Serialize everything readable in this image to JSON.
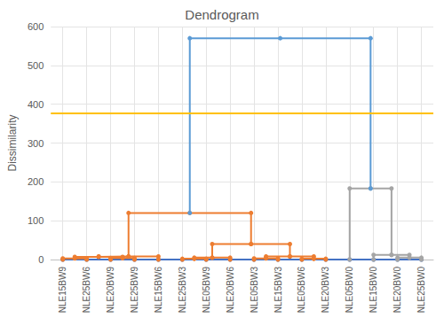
{
  "chart_data": {
    "type": "dendrogram",
    "title": "Dendrogram",
    "y_label": "Dissimilarity",
    "categories": [
      "NLE15BW9",
      "NLE25BW6",
      "NLE20BW9",
      "NLE25BW9",
      "NLE15BW6",
      "NLE25BW3",
      "NLE05BW9",
      "NLE20BW6",
      "NLE05BW3",
      "NLE15BW3",
      "NLE05BW6",
      "NLE20BW3",
      "NLE05BW0",
      "NLE15BW0",
      "NLE20BW0",
      "NLE25BW0"
    ],
    "merges": [
      {
        "children": [
          0,
          1
        ],
        "height": 3,
        "color": "#ED7D31"
      },
      {
        "children": [
          2,
          3
        ],
        "height": 4,
        "color": "#ED7D31"
      },
      {
        "children": [
          16,
          17
        ],
        "height": 7,
        "color": "#ED7D31"
      },
      {
        "children": [
          18,
          4
        ],
        "height": 8,
        "color": "#ED7D31"
      },
      {
        "children": [
          5,
          6
        ],
        "height": 2,
        "color": "#ED7D31"
      },
      {
        "children": [
          20,
          7
        ],
        "height": 5,
        "color": "#ED7D31"
      },
      {
        "children": [
          8,
          9
        ],
        "height": 3,
        "color": "#ED7D31"
      },
      {
        "children": [
          10,
          11
        ],
        "height": 2,
        "color": "#ED7D31"
      },
      {
        "children": [
          22,
          23
        ],
        "height": 8,
        "color": "#ED7D31"
      },
      {
        "children": [
          21,
          24
        ],
        "height": 40,
        "color": "#ED7D31"
      },
      {
        "children": [
          19,
          25
        ],
        "height": 120,
        "color": "#ED7D31"
      },
      {
        "children": [
          14,
          15
        ],
        "height": 5,
        "color": "#A5A5A5"
      },
      {
        "children": [
          13,
          27
        ],
        "height": 12,
        "color": "#A5A5A5"
      },
      {
        "children": [
          12,
          28
        ],
        "height": 183,
        "color": "#A5A5A5"
      },
      {
        "children": [
          26,
          29
        ],
        "height": 570,
        "color": "#5B9BD5"
      }
    ],
    "color": "#4472C4",
    "threshold": {
      "value": 376,
      "color": "#FFC000"
    },
    "ylim": [
      0,
      600
    ],
    "yticks": [
      0,
      100,
      200,
      300,
      400,
      500,
      600
    ],
    "grid": true,
    "marker": "circle"
  }
}
